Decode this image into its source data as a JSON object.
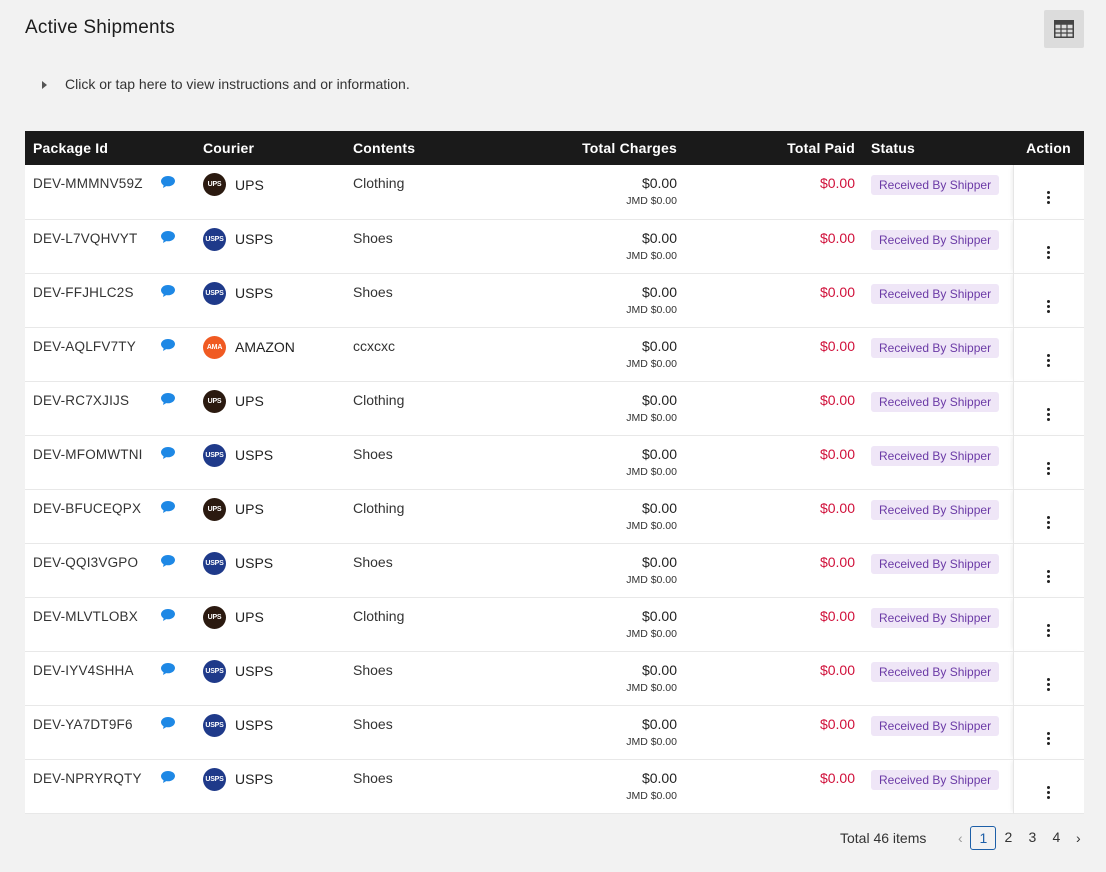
{
  "page": {
    "title": "Active Shipments"
  },
  "info": {
    "text": "Click or tap here to view instructions and or information."
  },
  "table": {
    "headers": {
      "package_id": "Package Id",
      "courier": "Courier",
      "contents": "Contents",
      "total_charges": "Total Charges",
      "total_paid": "Total Paid",
      "status": "Status",
      "action": "Action"
    },
    "rows": [
      {
        "id": "DEV-MMMNV59Z",
        "courier": "UPS",
        "logo": "UPS",
        "logo_color": "#2b1a10",
        "contents": "Clothing",
        "charge": "$0.00",
        "charge_jmd": "JMD $0.00",
        "paid": "$0.00",
        "status": "Received By Shipper"
      },
      {
        "id": "DEV-L7VQHVYT",
        "courier": "USPS",
        "logo": "USPS",
        "logo_color": "#1f3a8a",
        "contents": "Shoes",
        "charge": "$0.00",
        "charge_jmd": "JMD $0.00",
        "paid": "$0.00",
        "status": "Received By Shipper"
      },
      {
        "id": "DEV-FFJHLC2S",
        "courier": "USPS",
        "logo": "USPS",
        "logo_color": "#1f3a8a",
        "contents": "Shoes",
        "charge": "$0.00",
        "charge_jmd": "JMD $0.00",
        "paid": "$0.00",
        "status": "Received By Shipper"
      },
      {
        "id": "DEV-AQLFV7TY",
        "courier": "AMAZON",
        "logo": "AMA",
        "logo_color": "#f05a22",
        "contents": "ccxcxc",
        "charge": "$0.00",
        "charge_jmd": "JMD $0.00",
        "paid": "$0.00",
        "status": "Received By Shipper"
      },
      {
        "id": "DEV-RC7XJIJS",
        "courier": "UPS",
        "logo": "UPS",
        "logo_color": "#2b1a10",
        "contents": "Clothing",
        "charge": "$0.00",
        "charge_jmd": "JMD $0.00",
        "paid": "$0.00",
        "status": "Received By Shipper"
      },
      {
        "id": "DEV-MFOMWTNI",
        "courier": "USPS",
        "logo": "USPS",
        "logo_color": "#1f3a8a",
        "contents": "Shoes",
        "charge": "$0.00",
        "charge_jmd": "JMD $0.00",
        "paid": "$0.00",
        "status": "Received By Shipper"
      },
      {
        "id": "DEV-BFUCEQPX",
        "courier": "UPS",
        "logo": "UPS",
        "logo_color": "#2b1a10",
        "contents": "Clothing",
        "charge": "$0.00",
        "charge_jmd": "JMD $0.00",
        "paid": "$0.00",
        "status": "Received By Shipper"
      },
      {
        "id": "DEV-QQI3VGPO",
        "courier": "USPS",
        "logo": "USPS",
        "logo_color": "#1f3a8a",
        "contents": "Shoes",
        "charge": "$0.00",
        "charge_jmd": "JMD $0.00",
        "paid": "$0.00",
        "status": "Received By Shipper"
      },
      {
        "id": "DEV-MLVTLOBX",
        "courier": "UPS",
        "logo": "UPS",
        "logo_color": "#2b1a10",
        "contents": "Clothing",
        "charge": "$0.00",
        "charge_jmd": "JMD $0.00",
        "paid": "$0.00",
        "status": "Received By Shipper"
      },
      {
        "id": "DEV-IYV4SHHA",
        "courier": "USPS",
        "logo": "USPS",
        "logo_color": "#1f3a8a",
        "contents": "Shoes",
        "charge": "$0.00",
        "charge_jmd": "JMD $0.00",
        "paid": "$0.00",
        "status": "Received By Shipper"
      },
      {
        "id": "DEV-YA7DT9F6",
        "courier": "USPS",
        "logo": "USPS",
        "logo_color": "#1f3a8a",
        "contents": "Shoes",
        "charge": "$0.00",
        "charge_jmd": "JMD $0.00",
        "paid": "$0.00",
        "status": "Received By Shipper"
      },
      {
        "id": "DEV-NPRYRQTY",
        "courier": "USPS",
        "logo": "USPS",
        "logo_color": "#1f3a8a",
        "contents": "Shoes",
        "charge": "$0.00",
        "charge_jmd": "JMD $0.00",
        "paid": "$0.00",
        "status": "Received By Shipper"
      }
    ]
  },
  "pagination": {
    "total": "Total 46 items",
    "pages": [
      "1",
      "2",
      "3",
      "4"
    ],
    "current": "1",
    "prev_icon": "chevron-left-icon",
    "next_icon": "chevron-right-icon"
  },
  "colors": {
    "header_bg": "#1a1a1a",
    "chat_icon": "#1e88e5",
    "paid": "#d0103a",
    "status_bg": "#efe6f7",
    "status_text": "#6b3aa6",
    "page_active": "#1d5fa8"
  },
  "icons": {
    "view_toggle": "table-grid-icon",
    "chat": "chat-bubble-icon",
    "action": "kebab-menu-icon"
  }
}
